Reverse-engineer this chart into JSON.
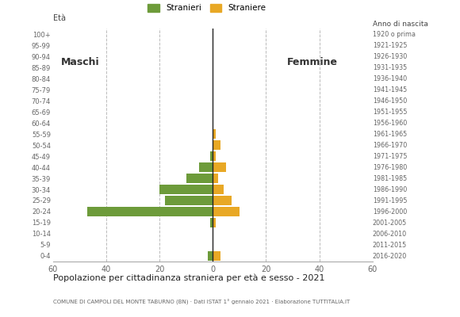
{
  "age_groups": [
    "0-4",
    "5-9",
    "10-14",
    "15-19",
    "20-24",
    "25-29",
    "30-34",
    "35-39",
    "40-44",
    "45-49",
    "50-54",
    "55-59",
    "60-64",
    "65-69",
    "70-74",
    "75-79",
    "80-84",
    "85-89",
    "90-94",
    "95-99",
    "100+"
  ],
  "birth_years": [
    "2016-2020",
    "2011-2015",
    "2006-2010",
    "2001-2005",
    "1996-2000",
    "1991-1995",
    "1986-1990",
    "1981-1985",
    "1976-1980",
    "1971-1975",
    "1966-1970",
    "1961-1965",
    "1956-1960",
    "1951-1955",
    "1946-1950",
    "1941-1945",
    "1936-1940",
    "1931-1935",
    "1926-1930",
    "1921-1925",
    "1920 o prima"
  ],
  "males": [
    2,
    0,
    0,
    1,
    47,
    18,
    20,
    10,
    5,
    1,
    0,
    0,
    0,
    0,
    0,
    0,
    0,
    0,
    0,
    0,
    0
  ],
  "females": [
    3,
    0,
    0,
    1,
    10,
    7,
    4,
    2,
    5,
    1,
    3,
    1,
    0,
    0,
    0,
    0,
    0,
    0,
    0,
    0,
    0
  ],
  "male_color": "#6d9b3a",
  "female_color": "#e8a825",
  "title": "Popolazione per cittadinanza straniera per età e sesso - 2021",
  "subtitle": "COMUNE DI CAMPOLI DEL MONTE TABURNO (BN) · Dati ISTAT 1° gennaio 2021 · Elaborazione TUTTITALIA.IT",
  "legend_male": "Stranieri",
  "legend_female": "Straniere",
  "label_eta": "Età",
  "label_anno": "Anno di nascita",
  "label_maschi": "Maschi",
  "label_femmine": "Femmine",
  "xlim": 60,
  "background_color": "#ffffff",
  "grid_color": "#bbbbbb"
}
